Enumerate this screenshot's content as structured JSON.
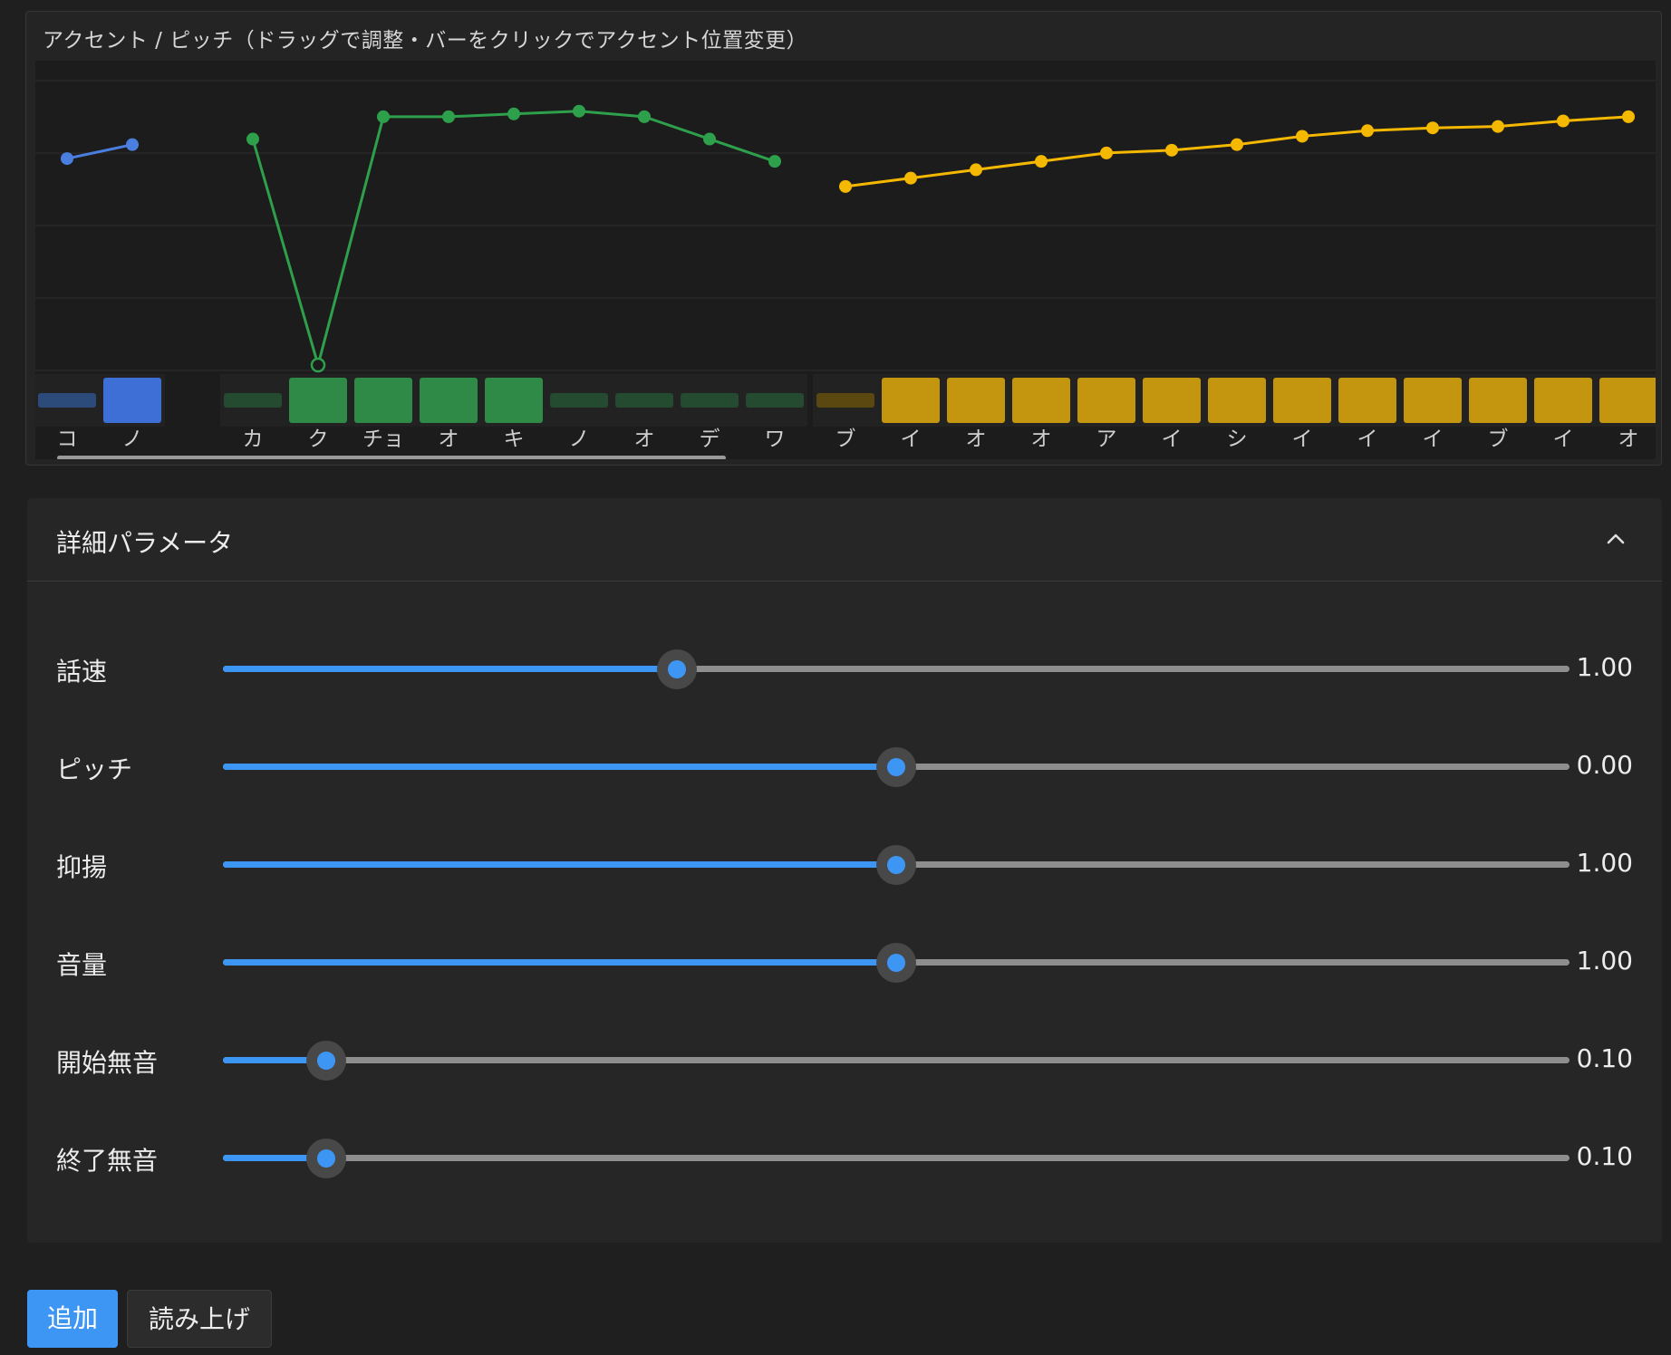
{
  "accent": {
    "title": "アクセント / ピッチ（ドラッグで調整・バーをクリックでアクセント位置変更）",
    "phrases": [
      {
        "color": "#4a7fe0",
        "accent_color": "#3d6fd6",
        "dim_color": "#2c4a7a",
        "morae": [
          {
            "label": "コ",
            "pitch": 0.74,
            "accent": false
          },
          {
            "label": "ノ",
            "pitch": 0.79,
            "accent": true
          }
        ]
      },
      {
        "color": "#2ea04c",
        "accent_color": "#2f8a47",
        "dim_color": "#244a30",
        "morae": [
          {
            "label": "カ",
            "pitch": 0.81,
            "accent": false
          },
          {
            "label": "ク",
            "pitch": 0.0,
            "accent": true,
            "unvoiced": true
          },
          {
            "label": "チョ",
            "pitch": 0.89,
            "accent": true
          },
          {
            "label": "オ",
            "pitch": 0.89,
            "accent": true
          },
          {
            "label": "キ",
            "pitch": 0.9,
            "accent": true
          },
          {
            "label": "ノ",
            "pitch": 0.91,
            "accent": false
          },
          {
            "label": "オ",
            "pitch": 0.89,
            "accent": false
          },
          {
            "label": "デ",
            "pitch": 0.81,
            "accent": false
          },
          {
            "label": "ワ",
            "pitch": 0.73,
            "accent": false
          }
        ]
      },
      {
        "color": "#f5b800",
        "accent_color": "#c4950e",
        "dim_color": "#5a4810",
        "morae": [
          {
            "label": "ブ",
            "pitch": 0.64,
            "accent": false
          },
          {
            "label": "イ",
            "pitch": 0.67,
            "accent": true
          },
          {
            "label": "オ",
            "pitch": 0.7,
            "accent": true
          },
          {
            "label": "オ",
            "pitch": 0.73,
            "accent": true
          },
          {
            "label": "ア",
            "pitch": 0.76,
            "accent": true
          },
          {
            "label": "イ",
            "pitch": 0.77,
            "accent": true
          },
          {
            "label": "シ",
            "pitch": 0.79,
            "accent": true
          },
          {
            "label": "イ",
            "pitch": 0.82,
            "accent": true
          },
          {
            "label": "イ",
            "pitch": 0.84,
            "accent": true
          },
          {
            "label": "イ",
            "pitch": 0.85,
            "accent": true
          },
          {
            "label": "ブ",
            "pitch": 0.855,
            "accent": true
          },
          {
            "label": "イ",
            "pitch": 0.875,
            "accent": true
          },
          {
            "label": "オ",
            "pitch": 0.89,
            "accent": true
          }
        ]
      }
    ]
  },
  "params": {
    "title": "詳細パラメータ",
    "collapse_icon": "chevron-up-icon",
    "sliders": [
      {
        "id": "speed",
        "label": "話速",
        "value": "1.00",
        "fraction": 0.337
      },
      {
        "id": "pitch",
        "label": "ピッチ",
        "value": "0.00",
        "fraction": 0.5
      },
      {
        "id": "intonation",
        "label": "抑揚",
        "value": "1.00",
        "fraction": 0.5
      },
      {
        "id": "volume",
        "label": "音量",
        "value": "1.00",
        "fraction": 0.5
      },
      {
        "id": "pre-silence",
        "label": "開始無音",
        "value": "0.10",
        "fraction": 0.077
      },
      {
        "id": "post-silence",
        "label": "終了無音",
        "value": "0.10",
        "fraction": 0.077
      }
    ]
  },
  "actions": {
    "add_label": "追加",
    "read_label": "読み上げ"
  },
  "colors": {
    "accent_blue": "#3e96f4"
  }
}
